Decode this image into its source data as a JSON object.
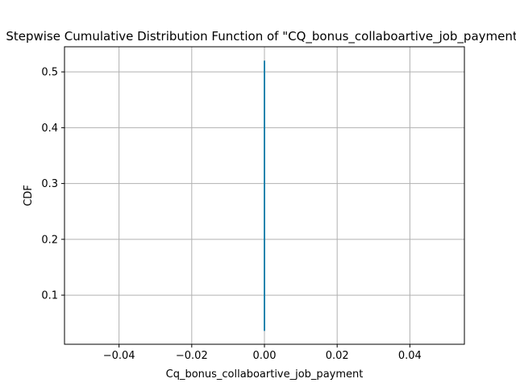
{
  "chart_data": {
    "type": "line",
    "title": "Stepwise Cumulative Distribution Function of \"CQ_bonus_collaboartive_job_payment\"",
    "xlabel": "Cq_bonus_collaboartive_job_payment",
    "ylabel": "CDF",
    "xlim": [
      -0.055,
      0.055
    ],
    "ylim": [
      0.012,
      0.545
    ],
    "xticks": [
      -0.04,
      -0.02,
      0.0,
      0.02,
      0.04
    ],
    "xtick_labels": [
      "−0.04",
      "−0.02",
      "0.00",
      "0.02",
      "0.04"
    ],
    "yticks": [
      0.1,
      0.2,
      0.3,
      0.4,
      0.5
    ],
    "ytick_labels": [
      "0.1",
      "0.2",
      "0.3",
      "0.4",
      "0.5"
    ],
    "grid": true,
    "series": [
      {
        "color": "#1f77b4",
        "x": [
          0.0,
          0.0
        ],
        "y": [
          0.036,
          0.52
        ]
      }
    ],
    "overlay_color": "#17a2a0"
  }
}
